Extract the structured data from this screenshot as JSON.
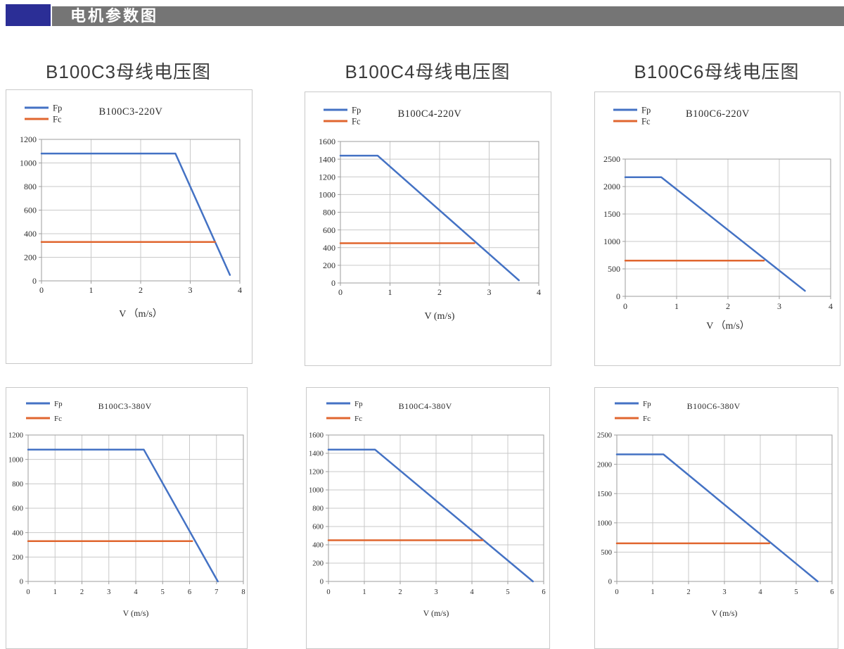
{
  "header": {
    "title": "电机参数图",
    "accent_color": "#2b2e96",
    "bar_color": "#757575"
  },
  "section_titles": [
    "B100C3母线电压图",
    "B100C4母线电压图",
    "B100C6母线电压图"
  ],
  "colors": {
    "fp": "#4472c4",
    "fc": "#e0662f",
    "grid": "#c9c9c9",
    "axis": "#9e9e9e",
    "text": "#2b2b2b"
  },
  "chart_data": [
    {
      "type": "line",
      "title": "B100C3-220V",
      "xlabel": "V （m/s）",
      "xlim": [
        0,
        4
      ],
      "xticks": [
        0,
        1,
        2,
        3,
        4
      ],
      "ylim": [
        0,
        1200
      ],
      "yticks": [
        0,
        200,
        400,
        600,
        800,
        1000,
        1200
      ],
      "grid": true,
      "legend_position": "top-left",
      "series": [
        {
          "name": "Fp",
          "color": "#4472c4",
          "points": [
            [
              0,
              1080
            ],
            [
              2.7,
              1080
            ],
            [
              3.8,
              50
            ]
          ]
        },
        {
          "name": "Fc",
          "color": "#e0662f",
          "points": [
            [
              0,
              330
            ],
            [
              3.5,
              330
            ]
          ]
        }
      ]
    },
    {
      "type": "line",
      "title": "B100C4-220V",
      "xlabel": "V (m/s)",
      "xlim": [
        0,
        4
      ],
      "xticks": [
        0,
        1,
        2,
        3,
        4
      ],
      "ylim": [
        0,
        1600
      ],
      "yticks": [
        0,
        200,
        400,
        600,
        800,
        1000,
        1200,
        1400,
        1600
      ],
      "grid": true,
      "legend_position": "top-left",
      "series": [
        {
          "name": "Fp",
          "color": "#4472c4",
          "points": [
            [
              0,
              1440
            ],
            [
              0.75,
              1440
            ],
            [
              3.6,
              30
            ]
          ]
        },
        {
          "name": "Fc",
          "color": "#e0662f",
          "points": [
            [
              0,
              450
            ],
            [
              2.7,
              450
            ]
          ]
        }
      ]
    },
    {
      "type": "line",
      "title": "B100C6-220V",
      "xlabel": "V （m/s）",
      "xlim": [
        0,
        4
      ],
      "xticks": [
        0,
        1,
        2,
        3,
        4
      ],
      "ylim": [
        0,
        2500
      ],
      "yticks": [
        0,
        500,
        1000,
        1500,
        2000,
        2500
      ],
      "grid": true,
      "legend_position": "top-left",
      "series": [
        {
          "name": "Fp",
          "color": "#4472c4",
          "points": [
            [
              0,
              2170
            ],
            [
              0.7,
              2170
            ],
            [
              3.5,
              100
            ]
          ]
        },
        {
          "name": "Fc",
          "color": "#e0662f",
          "points": [
            [
              0,
              650
            ],
            [
              2.7,
              650
            ]
          ]
        }
      ]
    },
    {
      "type": "line",
      "title": "B100C3-380V",
      "xlabel": "V (m/s)",
      "xlim": [
        0,
        8
      ],
      "xticks": [
        0,
        1,
        2,
        3,
        4,
        5,
        6,
        7,
        8
      ],
      "ylim": [
        0,
        1200
      ],
      "yticks": [
        0,
        200,
        400,
        600,
        800,
        1000,
        1200
      ],
      "grid": true,
      "legend_position": "top-left",
      "series": [
        {
          "name": "Fp",
          "color": "#4472c4",
          "points": [
            [
              0,
              1080
            ],
            [
              4.3,
              1080
            ],
            [
              7.05,
              0
            ]
          ]
        },
        {
          "name": "Fc",
          "color": "#e0662f",
          "points": [
            [
              0,
              330
            ],
            [
              6.1,
              330
            ]
          ]
        }
      ]
    },
    {
      "type": "line",
      "title": "B100C4-380V",
      "xlabel": "V (m/s)",
      "xlim": [
        0,
        6
      ],
      "xticks": [
        0,
        1,
        2,
        3,
        4,
        5,
        6
      ],
      "ylim": [
        0,
        1600
      ],
      "yticks": [
        0,
        200,
        400,
        600,
        800,
        1000,
        1200,
        1400,
        1600
      ],
      "grid": true,
      "legend_position": "top-left",
      "series": [
        {
          "name": "Fp",
          "color": "#4472c4",
          "points": [
            [
              0,
              1440
            ],
            [
              1.3,
              1440
            ],
            [
              5.7,
              0
            ]
          ]
        },
        {
          "name": "Fc",
          "color": "#e0662f",
          "points": [
            [
              0,
              450
            ],
            [
              4.3,
              450
            ]
          ]
        }
      ]
    },
    {
      "type": "line",
      "title": "B100C6-380V",
      "xlabel": "V (m/s)",
      "xlim": [
        0,
        6
      ],
      "xticks": [
        0,
        1,
        2,
        3,
        4,
        5,
        6
      ],
      "ylim": [
        0,
        2500
      ],
      "yticks": [
        0,
        500,
        1000,
        1500,
        2000,
        2500
      ],
      "grid": true,
      "legend_position": "top-left",
      "series": [
        {
          "name": "Fp",
          "color": "#4472c4",
          "points": [
            [
              0,
              2170
            ],
            [
              1.3,
              2170
            ],
            [
              5.6,
              0
            ]
          ]
        },
        {
          "name": "Fc",
          "color": "#e0662f",
          "points": [
            [
              0,
              650
            ],
            [
              4.25,
              650
            ]
          ]
        }
      ]
    }
  ]
}
